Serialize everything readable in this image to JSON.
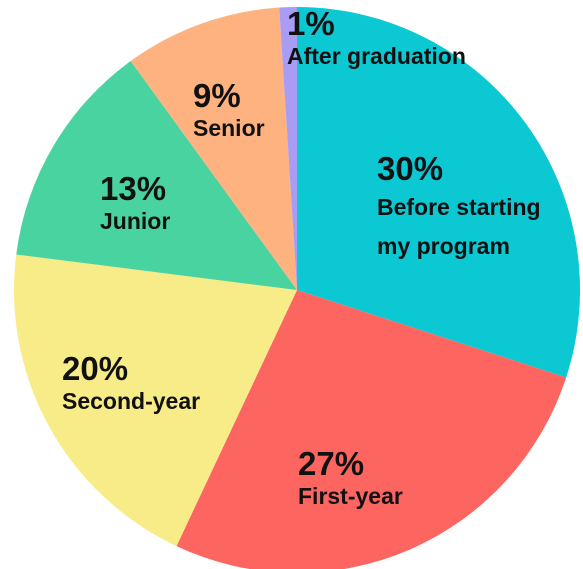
{
  "chart_data": {
    "type": "pie",
    "categories": [
      "Before starting my program",
      "First-year",
      "Second-year",
      "Junior",
      "Senior",
      "After graduation"
    ],
    "values": [
      30,
      27,
      20,
      13,
      9,
      1
    ],
    "value_labels": [
      "30%",
      "27%",
      "20%",
      "13%",
      "9%",
      "1%"
    ],
    "colors": [
      "#0cc8d3",
      "#fd6561",
      "#f7ec87",
      "#48d3a0",
      "#fdb27f",
      "#a99cf5"
    ]
  }
}
